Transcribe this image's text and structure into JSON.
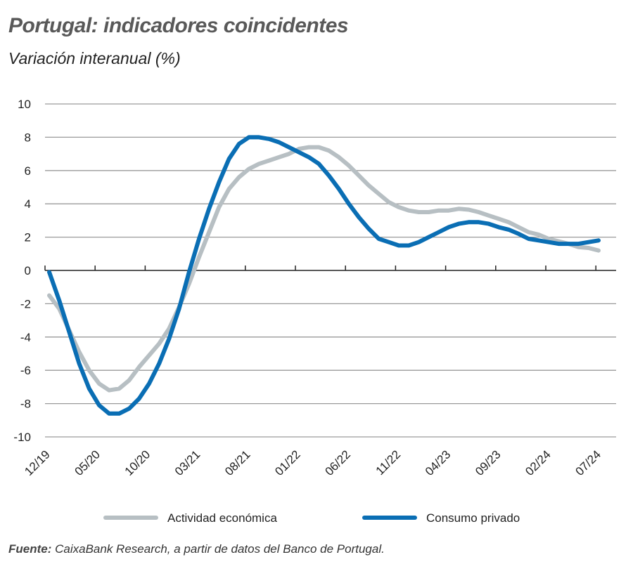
{
  "title": "Portugal: indicadores coincidentes",
  "subtitle": "Variación interanual (%)",
  "source_label": "Fuente:",
  "source_text": " CaixaBank Research, a partir de datos del Banco de Portugal.",
  "chart_data": {
    "type": "line",
    "title": "Portugal: indicadores coincidentes",
    "ylabel": "Variación interanual (%)",
    "ylim": [
      -10,
      10
    ],
    "yticks": [
      10,
      8,
      6,
      4,
      2,
      0,
      -2,
      -4,
      -6,
      -8,
      -10
    ],
    "grid": true,
    "legend": "bottom",
    "xtick_labels": [
      "12/19",
      "05/20",
      "10/20",
      "03/21",
      "08/21",
      "01/22",
      "06/22",
      "11/22",
      "04/23",
      "09/23",
      "02/24",
      "07/24"
    ],
    "x_start": "12/19",
    "x_end": "07/24",
    "frequency": "monthly",
    "series": [
      {
        "name": "Actividad económica",
        "color": "#b7bfc3",
        "values": [
          -1.5,
          -2.3,
          -3.6,
          -4.9,
          -6.0,
          -6.8,
          -7.2,
          -7.1,
          -6.6,
          -5.8,
          -5.1,
          -4.4,
          -3.5,
          -2.2,
          -0.8,
          0.8,
          2.3,
          3.8,
          4.9,
          5.6,
          6.1,
          6.4,
          6.6,
          6.8,
          7.0,
          7.3,
          7.4,
          7.4,
          7.2,
          6.8,
          6.3,
          5.7,
          5.1,
          4.6,
          4.1,
          3.8,
          3.6,
          3.5,
          3.5,
          3.6,
          3.6,
          3.7,
          3.65,
          3.5,
          3.3,
          3.1,
          2.9,
          2.6,
          2.3,
          2.15,
          1.9,
          1.75,
          1.6,
          1.4,
          1.35,
          1.2
        ]
      },
      {
        "name": "Consumo privado",
        "color": "#0a6eb4",
        "values": [
          -0.1,
          -1.8,
          -3.7,
          -5.6,
          -7.1,
          -8.1,
          -8.6,
          -8.6,
          -8.3,
          -7.7,
          -6.8,
          -5.6,
          -4.1,
          -2.3,
          -0.1,
          1.9,
          3.7,
          5.3,
          6.7,
          7.6,
          8.0,
          8.0,
          7.9,
          7.7,
          7.4,
          7.1,
          6.8,
          6.4,
          5.7,
          4.9,
          4.0,
          3.2,
          2.5,
          1.9,
          1.7,
          1.5,
          1.5,
          1.7,
          2.0,
          2.3,
          2.6,
          2.8,
          2.9,
          2.9,
          2.8,
          2.6,
          2.45,
          2.2,
          1.9,
          1.8,
          1.7,
          1.6,
          1.6,
          1.6,
          1.7,
          1.8
        ]
      }
    ]
  }
}
